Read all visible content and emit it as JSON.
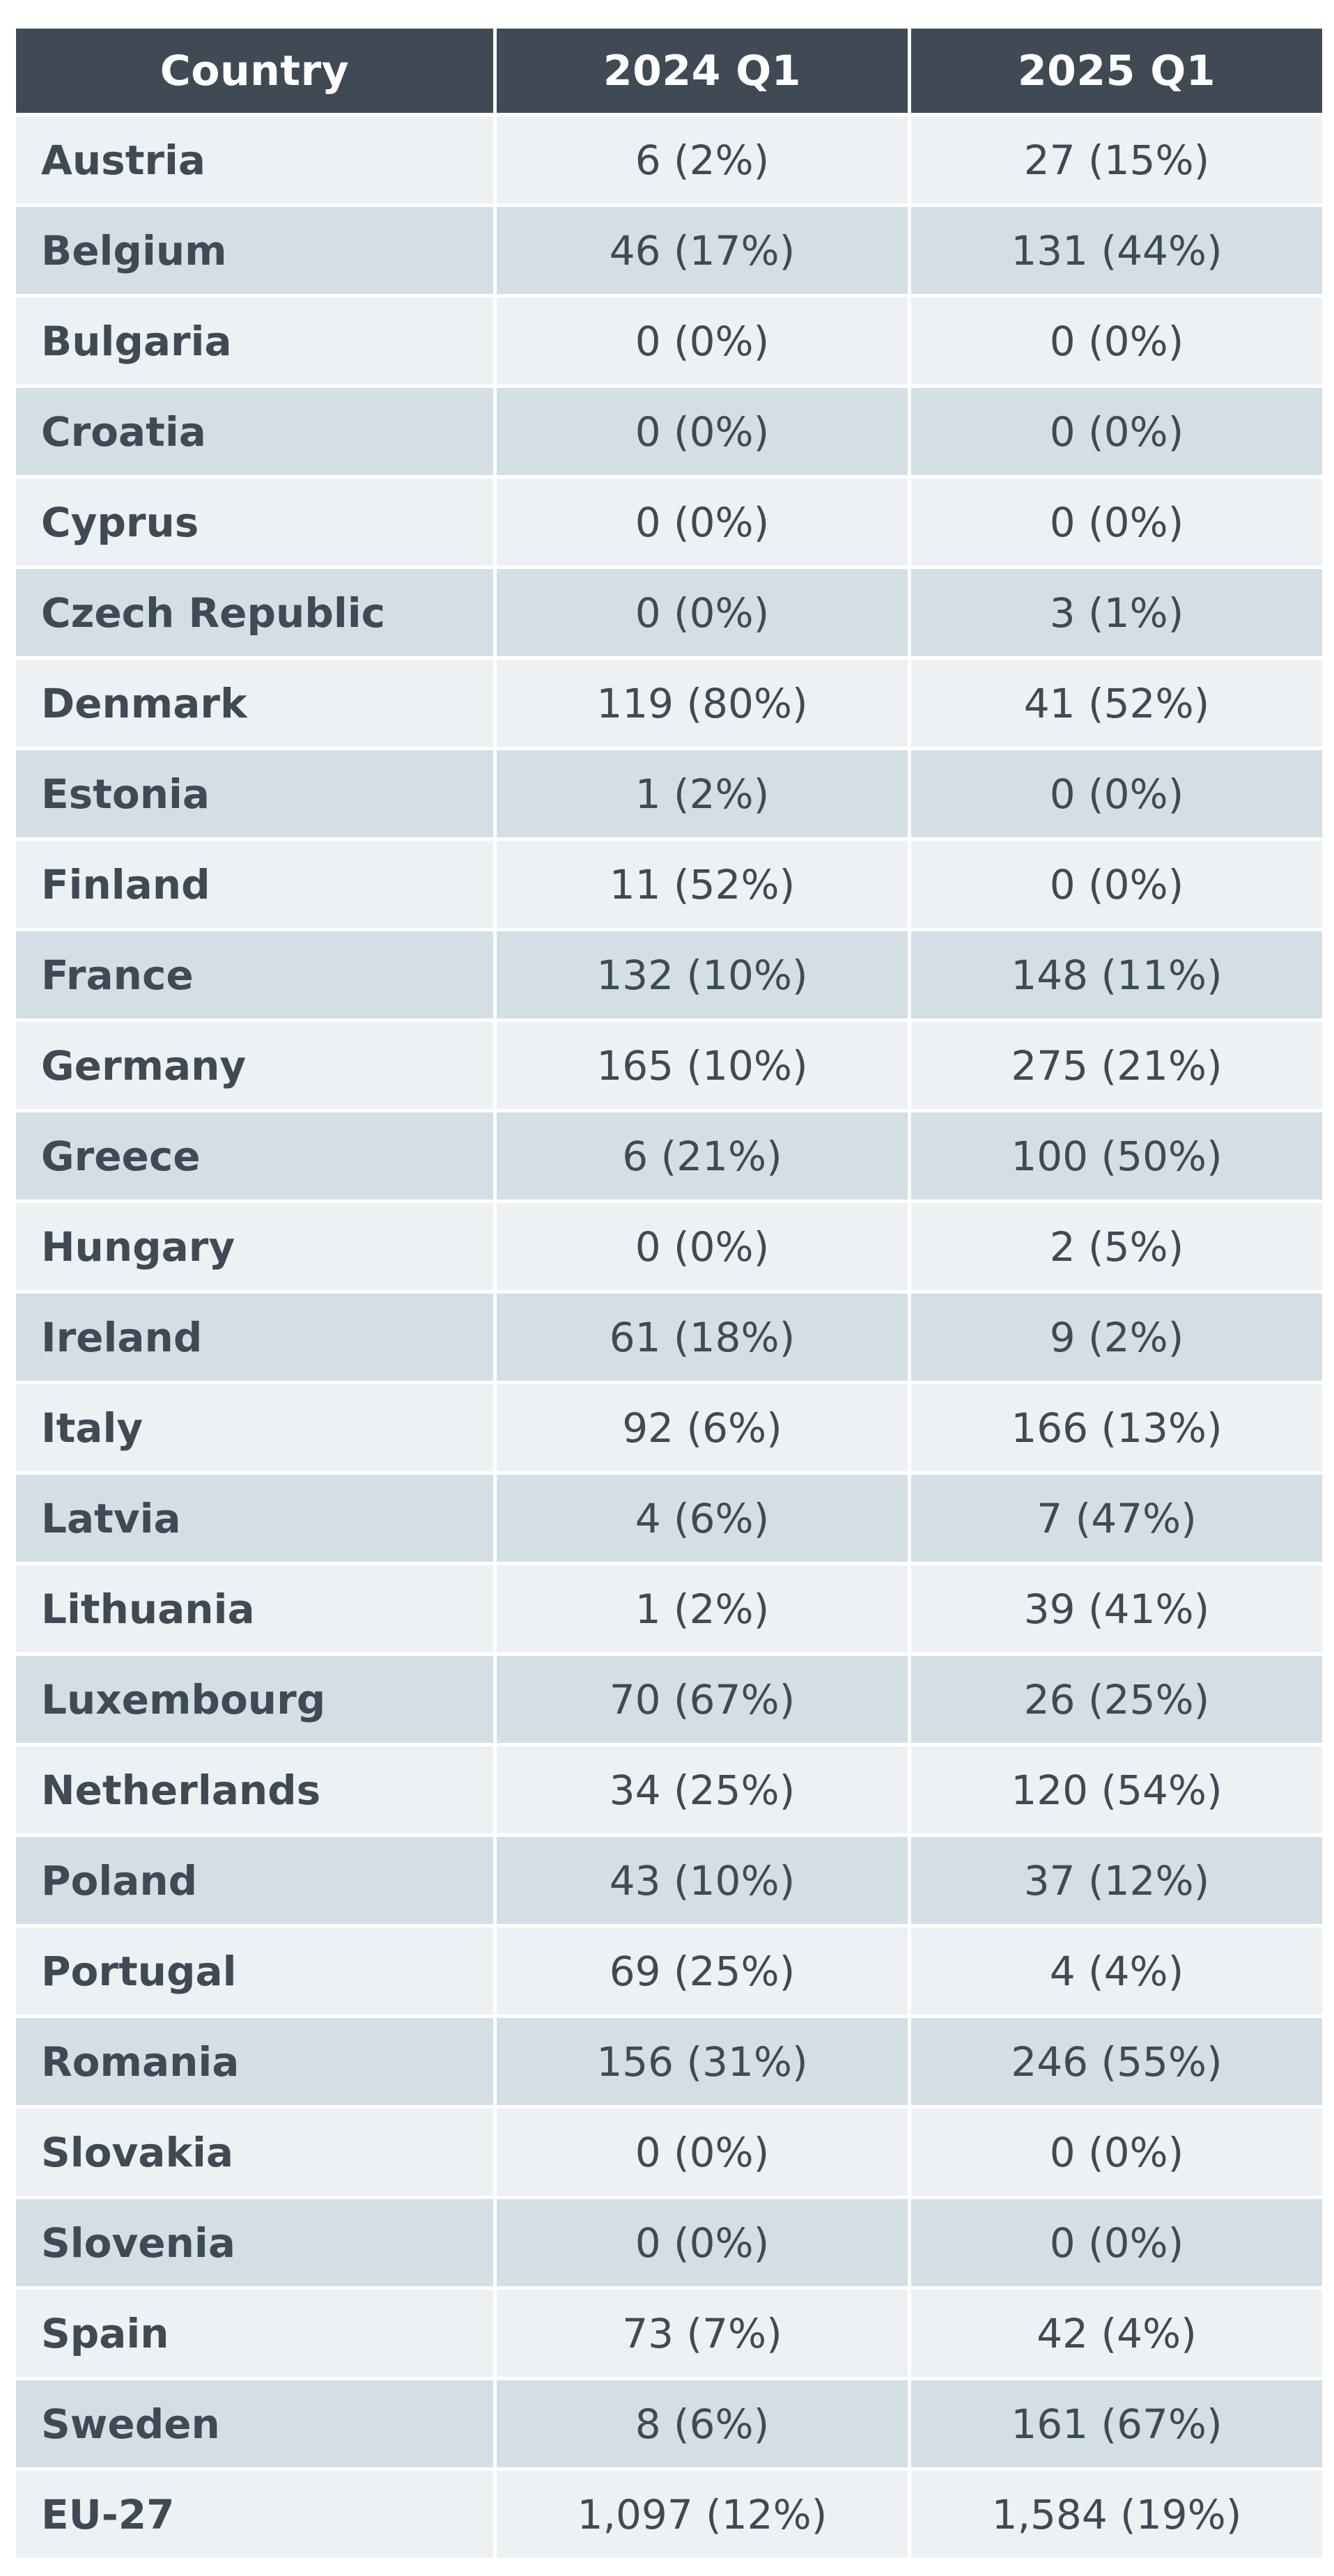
{
  "chart_data": {
    "type": "table",
    "columns": [
      "Country",
      "2024 Q1",
      "2025 Q1"
    ],
    "rows": [
      {
        "country": "Austria",
        "q2024": "6 (2%)",
        "q2025": "27 (15%)"
      },
      {
        "country": "Belgium",
        "q2024": "46 (17%)",
        "q2025": "131 (44%)"
      },
      {
        "country": "Bulgaria",
        "q2024": "0 (0%)",
        "q2025": "0 (0%)"
      },
      {
        "country": "Croatia",
        "q2024": "0 (0%)",
        "q2025": "0 (0%)"
      },
      {
        "country": "Cyprus",
        "q2024": "0 (0%)",
        "q2025": "0 (0%)"
      },
      {
        "country": "Czech Republic",
        "q2024": "0 (0%)",
        "q2025": "3 (1%)"
      },
      {
        "country": "Denmark",
        "q2024": "119 (80%)",
        "q2025": "41 (52%)"
      },
      {
        "country": "Estonia",
        "q2024": "1 (2%)",
        "q2025": "0 (0%)"
      },
      {
        "country": "Finland",
        "q2024": "11 (52%)",
        "q2025": "0 (0%)"
      },
      {
        "country": "France",
        "q2024": "132 (10%)",
        "q2025": "148 (11%)"
      },
      {
        "country": "Germany",
        "q2024": "165 (10%)",
        "q2025": "275 (21%)"
      },
      {
        "country": "Greece",
        "q2024": "6 (21%)",
        "q2025": "100 (50%)"
      },
      {
        "country": "Hungary",
        "q2024": "0 (0%)",
        "q2025": "2 (5%)"
      },
      {
        "country": "Ireland",
        "q2024": "61 (18%)",
        "q2025": "9 (2%)"
      },
      {
        "country": "Italy",
        "q2024": "92 (6%)",
        "q2025": "166 (13%)"
      },
      {
        "country": "Latvia",
        "q2024": "4 (6%)",
        "q2025": "7 (47%)"
      },
      {
        "country": "Lithuania",
        "q2024": "1 (2%)",
        "q2025": "39 (41%)"
      },
      {
        "country": "Luxembourg",
        "q2024": "70 (67%)",
        "q2025": "26 (25%)"
      },
      {
        "country": "Netherlands",
        "q2024": "34 (25%)",
        "q2025": "120 (54%)"
      },
      {
        "country": "Poland",
        "q2024": "43 (10%)",
        "q2025": "37 (12%)"
      },
      {
        "country": "Portugal",
        "q2024": "69 (25%)",
        "q2025": "4 (4%)"
      },
      {
        "country": "Romania",
        "q2024": "156 (31%)",
        "q2025": "246 (55%)"
      },
      {
        "country": "Slovakia",
        "q2024": "0 (0%)",
        "q2025": "0 (0%)"
      },
      {
        "country": "Slovenia",
        "q2024": "0 (0%)",
        "q2025": "0 (0%)"
      },
      {
        "country": "Spain",
        "q2024": "73 (7%)",
        "q2025": "42 (4%)"
      },
      {
        "country": "Sweden",
        "q2024": "8 (6%)",
        "q2025": "161 (67%)"
      },
      {
        "country": "EU-27",
        "q2024": "1,097 (12%)",
        "q2025": "1,584 (19%)"
      }
    ]
  },
  "colors": {
    "header_bg": "#3f4a55",
    "header_text": "#ffffff",
    "row_light": "#edf1f4",
    "row_dark": "#d3dfe5",
    "body_text": "#3f4a55"
  }
}
